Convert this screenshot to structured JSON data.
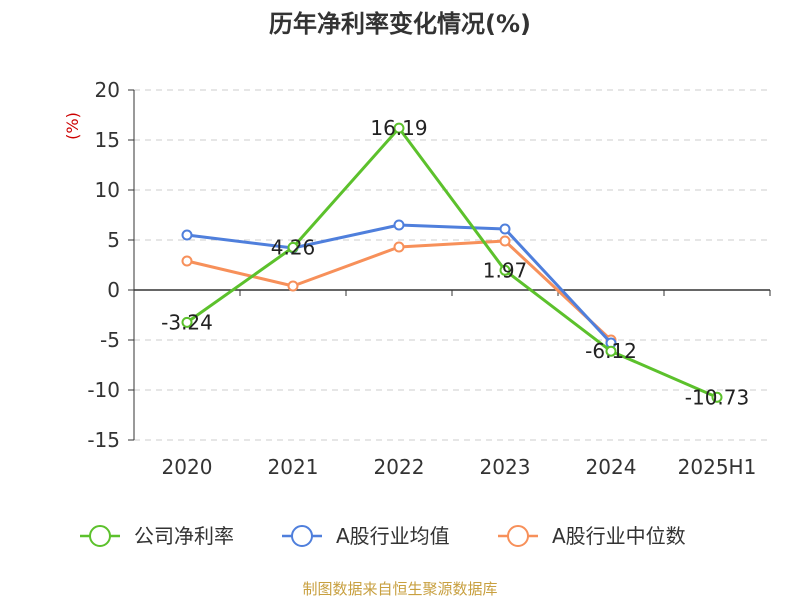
{
  "chart_data": {
    "type": "line",
    "title": "历年净利率变化情况(%)",
    "unit_label": "(%)",
    "categories": [
      "2020",
      "2021",
      "2022",
      "2023",
      "2024",
      "2025H1"
    ],
    "ylim": [
      -15,
      20
    ],
    "yticks": [
      20,
      15,
      10,
      5,
      0,
      -5,
      -10,
      -15
    ],
    "grid": true,
    "legend_position": "bottom",
    "series": [
      {
        "name": "公司净利率",
        "color": "#5cc12c",
        "values": [
          -3.24,
          4.26,
          16.19,
          1.97,
          -6.12,
          -10.73
        ],
        "labels": [
          "-3.24",
          "4.26",
          "16.19",
          "1.97",
          "-6.12",
          "-10.73"
        ]
      },
      {
        "name": "A股行业均值",
        "color": "#4f7fdc",
        "values": [
          5.5,
          4.2,
          6.5,
          6.1,
          -5.3,
          null
        ]
      },
      {
        "name": "A股行业中位数",
        "color": "#f7905a",
        "values": [
          2.9,
          0.4,
          4.3,
          4.9,
          -5.0,
          null
        ]
      }
    ],
    "source": "制图数据来自恒生聚源数据库"
  }
}
